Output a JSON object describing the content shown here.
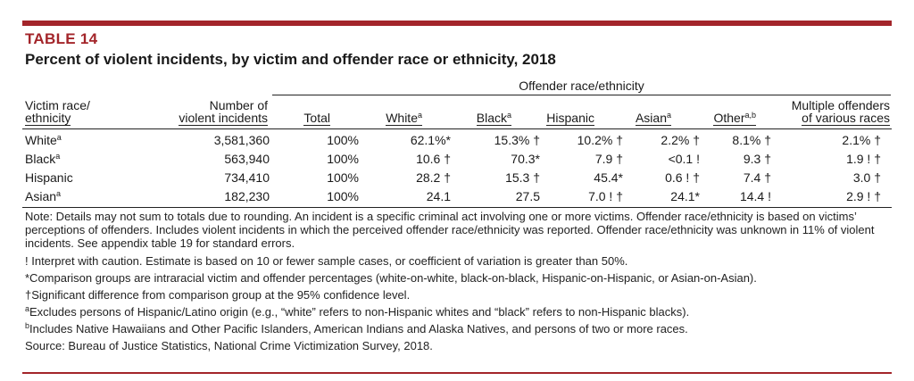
{
  "table_number": "TABLE 14",
  "title": "Percent of violent incidents, by victim and offender race or ethnicity, 2018",
  "group_header": "Offender race/ethnicity",
  "headers": {
    "victim_line1": "Victim race/",
    "victim_line2": "ethnicity",
    "number_line1": "Number of",
    "number_line2": "violent incidents",
    "total": "Total",
    "white": "White",
    "white_sup": "a",
    "black": "Black",
    "black_sup": "a",
    "hispanic": "Hispanic",
    "asian": "Asian",
    "asian_sup": "a",
    "other": "Other",
    "other_sup": "a,b",
    "multi_line1": "Multiple offenders",
    "multi_line2": "of various races"
  },
  "rows": [
    {
      "race": "White",
      "sup": "a",
      "number": "3,581,360",
      "total": "100%",
      "white": "62.1%*",
      "black": "15.3% †",
      "hispanic": "10.2% †",
      "asian": "2.2% †",
      "other": "8.1% †",
      "multi": "2.1% †"
    },
    {
      "race": "Black",
      "sup": "a",
      "number": "563,940",
      "total": "100%",
      "white": "10.6 †",
      "black": "70.3*",
      "hispanic": "7.9 †",
      "asian": "<0.1 !",
      "other": "9.3 †",
      "multi": "1.9 ! †"
    },
    {
      "race": "Hispanic",
      "sup": "",
      "number": "734,410",
      "total": "100%",
      "white": "28.2 †",
      "black": "15.3 †",
      "hispanic": "45.4*",
      "asian": "0.6 ! †",
      "other": "7.4 †",
      "multi": "3.0 †"
    },
    {
      "race": "Asian",
      "sup": "a",
      "number": "182,230",
      "total": "100%",
      "white": "24.1",
      "black": "27.5",
      "hispanic": "7.0 ! †",
      "asian": "24.1*",
      "other": "14.4 !",
      "multi": "2.9 ! †"
    }
  ],
  "notes": {
    "main": "Note: Details may not sum to totals due to rounding. An incident is a specific criminal act involving one or more victims. Offender race/ethnicity is based on victims’ perceptions of offenders. Includes violent incidents in which the perceived offender race/ethnicity was reported. Offender race/ethnicity was unknown in 11% of violent incidents. See appendix table 19 for standard errors.",
    "caution": "! Interpret with caution. Estimate is based on 10 or fewer sample cases, or coefficient of variation is greater than 50%.",
    "comparison": "*Comparison groups are intraracial victim and offender percentages (white-on-white, black-on-black, Hispanic-on-Hispanic, or Asian-on-Asian).",
    "significant": "†Significant difference from comparison group at the 95% confidence level.",
    "note_a_mark": "a",
    "note_a": "Excludes persons of Hispanic/Latino origin (e.g., “white” refers to non-Hispanic whites and “black” refers to non-Hispanic blacks).",
    "note_b_mark": "b",
    "note_b": "Includes Native Hawaiians and Other Pacific Islanders, American Indians and Alaska Natives, and persons of two or more races.",
    "source": "Source: Bureau of Justice Statistics, National Crime Victimization Survey, 2018."
  },
  "colors": {
    "accent": "#a3252a",
    "text": "#1a1a1a"
  }
}
